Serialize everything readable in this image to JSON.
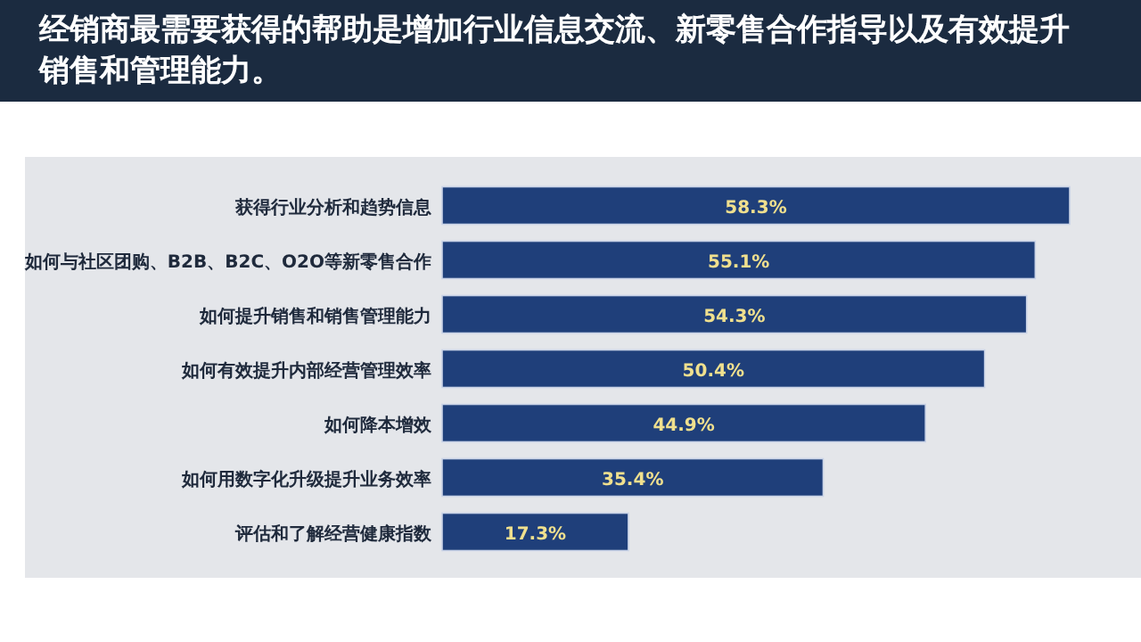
{
  "chart_data": {
    "type": "bar",
    "orientation": "horizontal",
    "title": "经销商最需要获得的帮助是增加行业信息交流、新零售合作指导以及有效提升销售和管理能力。",
    "categories": [
      "获得行业分析和趋势信息",
      "如何与社区团购、B2B、B2C、O2O等新零售合作",
      "如何提升销售和销售管理能力",
      "如何有效提升内部经营管理效率",
      "如何降本增效",
      "如何用数字化升级提升业务效率",
      "评估和了解经营健康指数"
    ],
    "values": [
      58.3,
      55.1,
      54.3,
      50.4,
      44.9,
      35.4,
      17.3
    ],
    "value_labels": [
      "58.3%",
      "55.1%",
      "54.3%",
      "50.4%",
      "44.9%",
      "35.4%",
      "17.3%"
    ],
    "color": "#1f3f7a"
  }
}
